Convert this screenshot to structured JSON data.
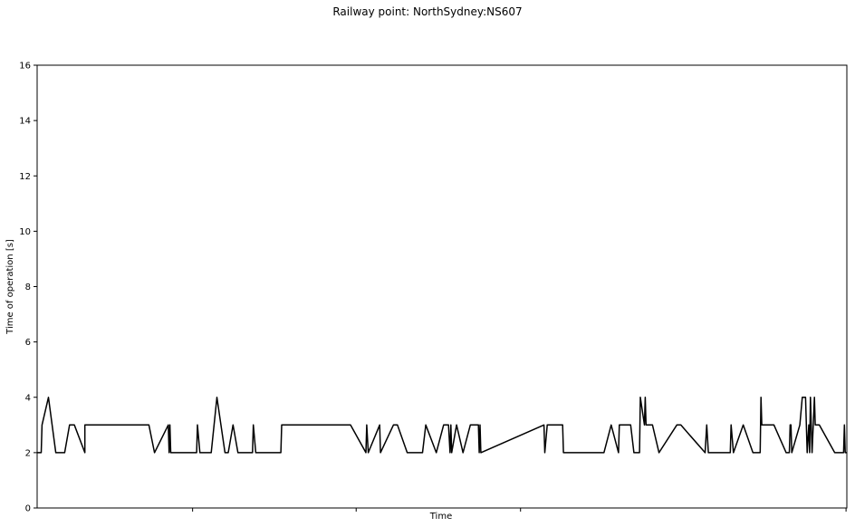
{
  "chart_data": {
    "type": "line",
    "title": "Railway point: NorthSydney:NS607",
    "xlabel": "Time",
    "ylabel": "Time of operation [s]",
    "ylim": [
      0,
      16
    ],
    "yticks": [
      0,
      2,
      4,
      6,
      8,
      10,
      12,
      14,
      16
    ],
    "xlim": [
      0,
      1000
    ],
    "xticks_unlabeled": [
      192,
      394,
      597,
      999
    ],
    "grid": false,
    "legend": "none",
    "line_color": "#000000",
    "series": [
      {
        "values": [
          [
            0,
            2
          ],
          [
            5,
            2
          ],
          [
            6,
            3
          ],
          [
            14,
            4
          ],
          [
            23,
            2
          ],
          [
            34,
            2
          ],
          [
            40,
            3
          ],
          [
            46,
            3
          ],
          [
            59,
            2
          ],
          [
            59,
            3
          ],
          [
            138,
            3
          ],
          [
            145,
            2
          ],
          [
            162,
            3
          ],
          [
            163,
            2
          ],
          [
            164,
            3
          ],
          [
            165,
            2
          ],
          [
            197,
            2
          ],
          [
            198,
            3
          ],
          [
            201,
            2
          ],
          [
            215,
            2
          ],
          [
            222,
            4
          ],
          [
            232,
            2
          ],
          [
            236,
            2
          ],
          [
            242,
            3
          ],
          [
            248,
            2
          ],
          [
            266,
            2
          ],
          [
            267,
            3
          ],
          [
            270,
            2
          ],
          [
            301,
            2
          ],
          [
            302,
            3
          ],
          [
            305,
            3
          ],
          [
            387,
            3
          ],
          [
            406,
            2
          ],
          [
            407,
            3
          ],
          [
            409,
            2
          ],
          [
            423,
            3
          ],
          [
            424,
            2
          ],
          [
            440,
            3
          ],
          [
            445,
            3
          ],
          [
            457,
            2
          ],
          [
            476,
            2
          ],
          [
            480,
            3
          ],
          [
            493,
            2
          ],
          [
            502,
            3
          ],
          [
            508,
            3
          ],
          [
            510,
            2
          ],
          [
            511,
            3
          ],
          [
            512,
            2
          ],
          [
            518,
            3
          ],
          [
            526,
            2
          ],
          [
            535,
            3
          ],
          [
            545,
            3
          ],
          [
            546,
            2
          ],
          [
            547,
            3
          ],
          [
            548,
            2
          ],
          [
            626,
            3
          ],
          [
            627,
            2
          ],
          [
            630,
            3
          ],
          [
            649,
            3
          ],
          [
            650,
            2
          ],
          [
            700,
            2
          ],
          [
            709,
            3
          ],
          [
            718,
            2
          ],
          [
            719,
            3
          ],
          [
            733,
            3
          ],
          [
            737,
            2
          ],
          [
            744,
            2
          ],
          [
            745,
            4
          ],
          [
            750,
            3
          ],
          [
            751,
            4
          ],
          [
            752,
            3
          ],
          [
            760,
            3
          ],
          [
            768,
            2
          ],
          [
            790,
            3
          ],
          [
            795,
            3
          ],
          [
            825,
            2
          ],
          [
            827,
            3
          ],
          [
            829,
            2
          ],
          [
            856,
            2
          ],
          [
            857,
            3
          ],
          [
            860,
            2
          ],
          [
            872,
            3
          ],
          [
            884,
            2
          ],
          [
            893,
            2
          ],
          [
            894,
            4
          ],
          [
            895,
            3
          ],
          [
            910,
            3
          ],
          [
            925,
            2
          ],
          [
            929,
            2
          ],
          [
            930,
            3
          ],
          [
            931,
            3
          ],
          [
            932,
            2
          ],
          [
            942,
            3
          ],
          [
            945,
            4
          ],
          [
            949,
            4
          ],
          [
            951,
            2
          ],
          [
            953,
            3
          ],
          [
            954,
            2
          ],
          [
            955,
            4
          ],
          [
            956,
            3
          ],
          [
            957,
            2
          ],
          [
            960,
            4
          ],
          [
            961,
            3
          ],
          [
            966,
            3
          ],
          [
            985,
            2
          ],
          [
            996,
            2
          ],
          [
            997,
            3
          ],
          [
            998,
            2
          ],
          [
            1000,
            2
          ]
        ]
      }
    ]
  }
}
